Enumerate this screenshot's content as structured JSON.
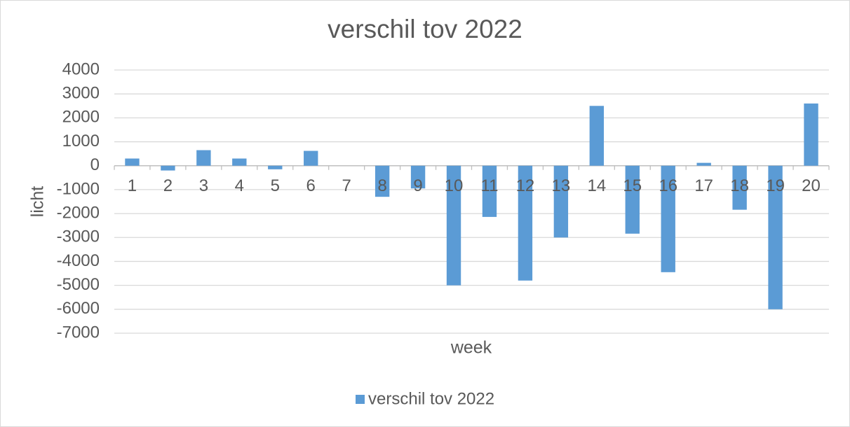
{
  "chart_data": {
    "type": "bar",
    "title": "verschil tov 2022",
    "x_label": "week",
    "y_label": "licht",
    "categories": [
      "1",
      "2",
      "3",
      "4",
      "5",
      "6",
      "7",
      "8",
      "9",
      "10",
      "11",
      "12",
      "13",
      "14",
      "15",
      "16",
      "17",
      "18",
      "19",
      "20"
    ],
    "series": [
      {
        "name": "verschil tov 2022",
        "color": "#5b9bd5",
        "values": [
          300,
          -200,
          650,
          300,
          -150,
          620,
          0,
          -1300,
          -950,
          -5000,
          -2140,
          -4800,
          -3000,
          2500,
          -2840,
          -4450,
          120,
          -1840,
          -6000,
          2600
        ]
      }
    ],
    "ylim": [
      -7000,
      4000
    ],
    "yticks": [
      -7000,
      -6000,
      -5000,
      -4000,
      -3000,
      -2000,
      -1000,
      0,
      1000,
      2000,
      3000,
      4000
    ],
    "grid": true,
    "legend": "bottom"
  }
}
